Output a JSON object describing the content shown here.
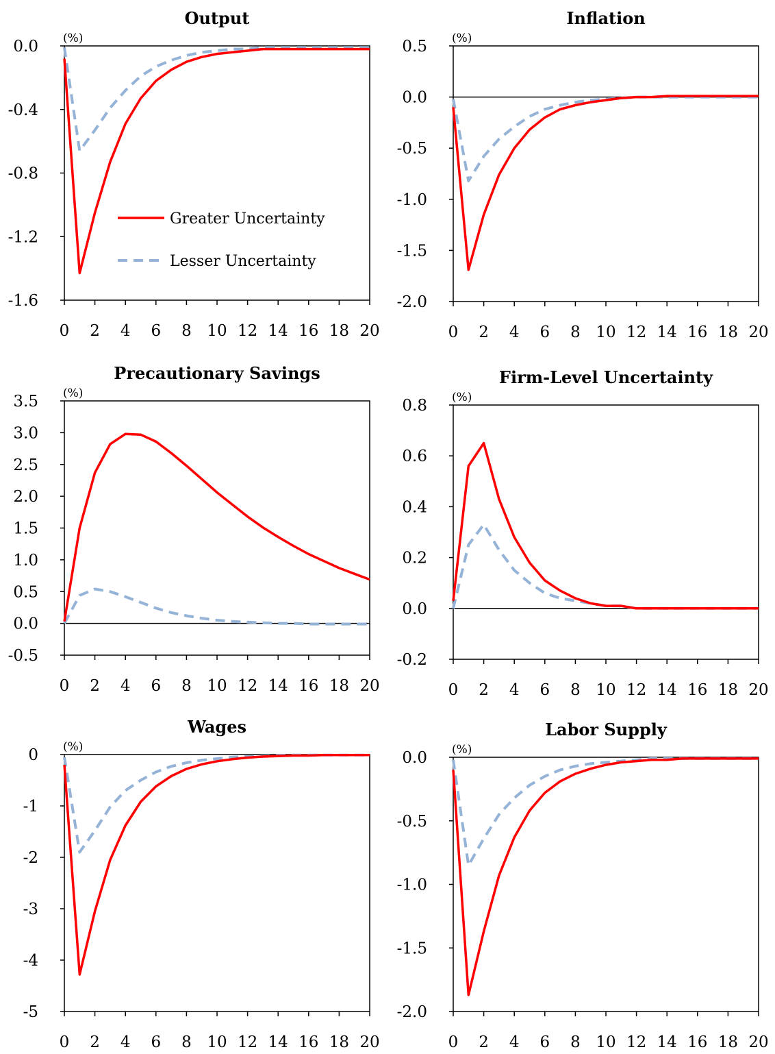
{
  "colors": {
    "greater": "#ff0000",
    "lesser": "#95b3d7"
  },
  "legend": {
    "items": [
      {
        "label": "Greater Uncertainty",
        "style": "solid"
      },
      {
        "label": "Lesser Uncertainty",
        "style": "dashed"
      }
    ]
  },
  "chart_data": [
    {
      "type": "line",
      "title": "Output",
      "unit": "(%)",
      "xlim": [
        0,
        20
      ],
      "ylim": [
        -1.6,
        0.0
      ],
      "decimals": 1,
      "xticks": [
        0,
        2,
        4,
        6,
        8,
        10,
        12,
        14,
        16,
        18,
        20
      ],
      "yticks": [
        0.0,
        -0.4,
        -0.8,
        -1.2,
        -1.6
      ],
      "x": [
        0,
        1,
        2,
        3,
        4,
        5,
        6,
        7,
        8,
        9,
        10,
        11,
        12,
        13,
        14,
        15,
        16,
        17,
        18,
        19,
        20
      ],
      "series": [
        {
          "name": "Greater Uncertainty",
          "style": "solid",
          "values": [
            -0.08,
            -1.43,
            -1.05,
            -0.73,
            -0.49,
            -0.33,
            -0.22,
            -0.15,
            -0.1,
            -0.07,
            -0.05,
            -0.04,
            -0.03,
            -0.02,
            -0.02,
            -0.02,
            -0.02,
            -0.02,
            -0.02,
            -0.02,
            -0.02
          ]
        },
        {
          "name": "Lesser Uncertainty",
          "style": "dashed",
          "values": [
            -0.01,
            -0.66,
            -0.53,
            -0.39,
            -0.28,
            -0.19,
            -0.13,
            -0.09,
            -0.06,
            -0.04,
            -0.03,
            -0.02,
            -0.02,
            -0.01,
            -0.01,
            -0.01,
            -0.01,
            -0.01,
            -0.01,
            -0.01,
            -0.01
          ]
        }
      ]
    },
    {
      "type": "line",
      "title": "Inflation",
      "unit": "(%)",
      "xlim": [
        0,
        20
      ],
      "ylim": [
        -2.0,
        0.5
      ],
      "decimals": 1,
      "xticks": [
        0,
        2,
        4,
        6,
        8,
        10,
        12,
        14,
        16,
        18,
        20
      ],
      "yticks": [
        0.5,
        0.0,
        -0.5,
        -1.0,
        -1.5,
        -2.0
      ],
      "x": [
        0,
        1,
        2,
        3,
        4,
        5,
        6,
        7,
        8,
        9,
        10,
        11,
        12,
        13,
        14,
        15,
        16,
        17,
        18,
        19,
        20
      ],
      "series": [
        {
          "name": "Greater Uncertainty",
          "style": "solid",
          "values": [
            -0.1,
            -1.69,
            -1.15,
            -0.76,
            -0.5,
            -0.32,
            -0.2,
            -0.12,
            -0.08,
            -0.05,
            -0.03,
            -0.01,
            0.0,
            0.0,
            0.01,
            0.01,
            0.01,
            0.01,
            0.01,
            0.01,
            0.01
          ]
        },
        {
          "name": "Lesser Uncertainty",
          "style": "dashed",
          "values": [
            -0.02,
            -0.82,
            -0.58,
            -0.41,
            -0.29,
            -0.19,
            -0.12,
            -0.08,
            -0.05,
            -0.03,
            -0.02,
            -0.01,
            0.0,
            0.0,
            0.0,
            0.0,
            0.0,
            0.0,
            0.0,
            0.0,
            0.0
          ]
        }
      ]
    },
    {
      "type": "line",
      "title": "Precautionary Savings",
      "unit": "(%)",
      "xlim": [
        0,
        20
      ],
      "ylim": [
        -0.5,
        3.5
      ],
      "decimals": 1,
      "xticks": [
        0,
        2,
        4,
        6,
        8,
        10,
        12,
        14,
        16,
        18,
        20
      ],
      "yticks": [
        3.5,
        3.0,
        2.5,
        2.0,
        1.5,
        1.0,
        0.5,
        0.0,
        -0.5
      ],
      "x": [
        0,
        1,
        2,
        3,
        4,
        5,
        6,
        7,
        8,
        9,
        10,
        11,
        12,
        13,
        14,
        15,
        16,
        17,
        18,
        19,
        20
      ],
      "series": [
        {
          "name": "Greater Uncertainty",
          "style": "solid",
          "values": [
            0.03,
            1.5,
            2.37,
            2.82,
            2.98,
            2.97,
            2.86,
            2.68,
            2.48,
            2.27,
            2.06,
            1.87,
            1.68,
            1.51,
            1.36,
            1.22,
            1.09,
            0.98,
            0.87,
            0.78,
            0.69
          ]
        },
        {
          "name": "Lesser Uncertainty",
          "style": "dashed",
          "values": [
            0.0,
            0.44,
            0.54,
            0.5,
            0.42,
            0.33,
            0.24,
            0.17,
            0.12,
            0.08,
            0.05,
            0.03,
            0.02,
            0.01,
            0.0,
            0.0,
            -0.01,
            -0.01,
            -0.01,
            -0.01,
            -0.01
          ]
        }
      ]
    },
    {
      "type": "line",
      "title": "Firm-Level Uncertainty",
      "unit": "(%)",
      "xlim": [
        0,
        20
      ],
      "ylim": [
        -0.2,
        0.8
      ],
      "decimals": 1,
      "xticks": [
        0,
        2,
        4,
        6,
        8,
        10,
        12,
        14,
        16,
        18,
        20
      ],
      "yticks": [
        0.8,
        0.6,
        0.4,
        0.2,
        0.0,
        -0.2
      ],
      "x": [
        0,
        1,
        2,
        3,
        4,
        5,
        6,
        7,
        8,
        9,
        10,
        11,
        12,
        13,
        14,
        15,
        16,
        17,
        18,
        19,
        20
      ],
      "series": [
        {
          "name": "Greater Uncertainty",
          "style": "solid",
          "values": [
            0.03,
            0.56,
            0.65,
            0.43,
            0.28,
            0.18,
            0.11,
            0.07,
            0.04,
            0.02,
            0.01,
            0.01,
            0.0,
            0.0,
            0.0,
            0.0,
            0.0,
            0.0,
            0.0,
            0.0,
            0.0
          ]
        },
        {
          "name": "Lesser Uncertainty",
          "style": "dashed",
          "values": [
            0.0,
            0.25,
            0.33,
            0.23,
            0.15,
            0.1,
            0.06,
            0.04,
            0.03,
            0.02,
            0.01,
            0.01,
            0.0,
            0.0,
            0.0,
            0.0,
            0.0,
            0.0,
            0.0,
            0.0,
            0.0
          ]
        }
      ]
    },
    {
      "type": "line",
      "title": "Wages",
      "unit": "(%)",
      "xlim": [
        0,
        20
      ],
      "ylim": [
        -5,
        0
      ],
      "decimals": 0,
      "xticks": [
        0,
        2,
        4,
        6,
        8,
        10,
        12,
        14,
        16,
        18,
        20
      ],
      "yticks": [
        0,
        -1,
        -2,
        -3,
        -4,
        -5
      ],
      "x": [
        0,
        1,
        2,
        3,
        4,
        5,
        6,
        7,
        8,
        9,
        10,
        11,
        12,
        13,
        14,
        15,
        16,
        17,
        18,
        19,
        20
      ],
      "series": [
        {
          "name": "Greater Uncertainty",
          "style": "solid",
          "values": [
            -0.2,
            -4.28,
            -3.05,
            -2.05,
            -1.38,
            -0.92,
            -0.62,
            -0.42,
            -0.28,
            -0.19,
            -0.13,
            -0.09,
            -0.06,
            -0.04,
            -0.03,
            -0.02,
            -0.02,
            -0.01,
            -0.01,
            -0.01,
            -0.01
          ]
        },
        {
          "name": "Lesser Uncertainty",
          "style": "dashed",
          "values": [
            -0.05,
            -1.9,
            -1.48,
            -1.02,
            -0.7,
            -0.5,
            -0.34,
            -0.23,
            -0.16,
            -0.11,
            -0.08,
            -0.05,
            -0.04,
            -0.03,
            -0.02,
            -0.01,
            -0.01,
            -0.01,
            -0.01,
            -0.01,
            -0.01
          ]
        }
      ]
    },
    {
      "type": "line",
      "title": "Labor Supply",
      "unit": "(%)",
      "xlim": [
        0,
        20
      ],
      "ylim": [
        -2.0,
        0.0
      ],
      "decimals": 1,
      "xticks": [
        0,
        2,
        4,
        6,
        8,
        10,
        12,
        14,
        16,
        18,
        20
      ],
      "yticks": [
        0.0,
        -0.5,
        -1.0,
        -1.5,
        -2.0
      ],
      "x": [
        0,
        1,
        2,
        3,
        4,
        5,
        6,
        7,
        8,
        9,
        10,
        11,
        12,
        13,
        14,
        15,
        16,
        17,
        18,
        19,
        20
      ],
      "series": [
        {
          "name": "Greater Uncertainty",
          "style": "solid",
          "values": [
            -0.1,
            -1.87,
            -1.37,
            -0.93,
            -0.63,
            -0.42,
            -0.28,
            -0.19,
            -0.13,
            -0.09,
            -0.06,
            -0.04,
            -0.03,
            -0.02,
            -0.02,
            -0.01,
            -0.01,
            -0.01,
            -0.01,
            -0.01,
            -0.01
          ]
        },
        {
          "name": "Lesser Uncertainty",
          "style": "dashed",
          "values": [
            -0.02,
            -0.85,
            -0.64,
            -0.45,
            -0.32,
            -0.22,
            -0.15,
            -0.1,
            -0.07,
            -0.05,
            -0.04,
            -0.03,
            -0.02,
            -0.01,
            -0.01,
            -0.01,
            -0.01,
            -0.01,
            -0.01,
            -0.01,
            -0.01
          ]
        }
      ]
    }
  ]
}
